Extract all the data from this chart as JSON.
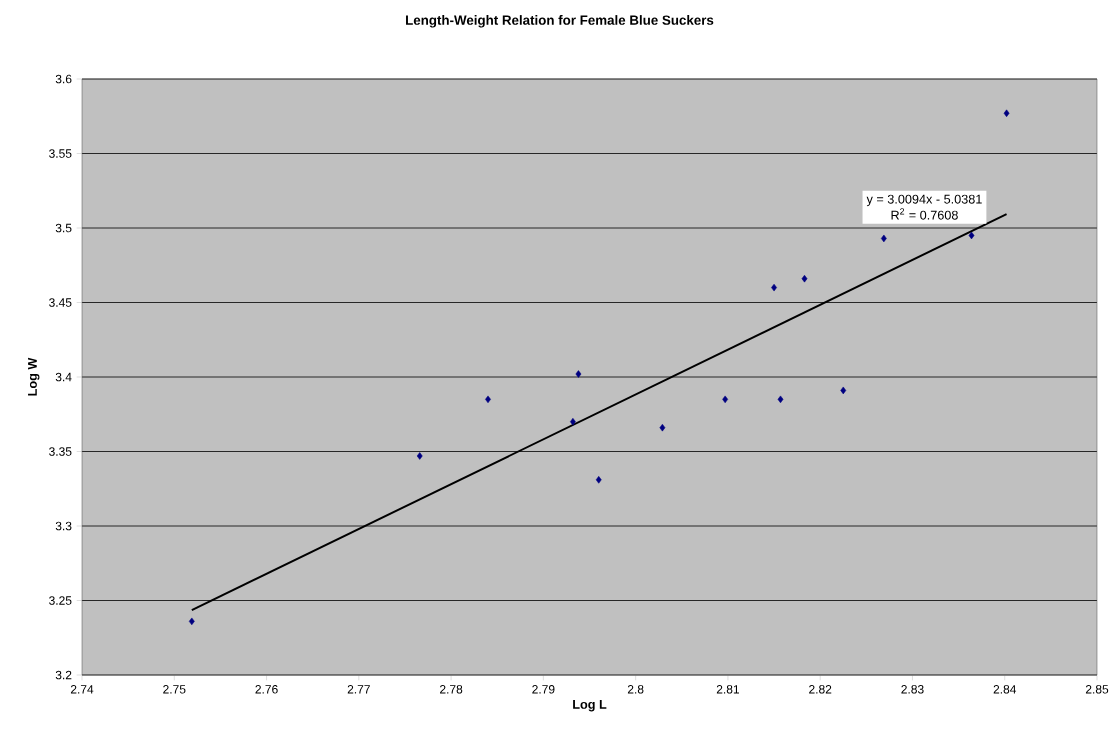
{
  "chart_data": {
    "type": "scatter",
    "title": "Length-Weight Relation for Female Blue Suckers",
    "xlabel": "Log L",
    "ylabel": "Log W",
    "annotations": [
      "y = 3.0094x - 5.0381",
      "R$^{2}$ = 0.7608"
    ],
    "series": [
      {
        "color": "#000080",
        "marker": "diamond",
        "x": [
          2.7519,
          2.7766,
          2.784,
          2.7932,
          2.7938,
          2.796,
          2.8029,
          2.8097,
          2.815,
          2.8157,
          2.8183,
          2.8225,
          2.8269,
          2.8364,
          2.8402
        ],
        "values": [
          3.236,
          3.347,
          3.385,
          3.37,
          3.402,
          3.331,
          3.366,
          3.385,
          3.46,
          3.385,
          3.466,
          3.391,
          3.493,
          3.495,
          3.577
        ]
      },
      {
        "type": "line",
        "color": "#000000",
        "marker": "none",
        "x": [
          2.7519,
          2.8402
        ],
        "values": [
          3.2435,
          3.5093
        ]
      }
    ],
    "xlim": [
      2.74,
      2.85
    ],
    "xticks": [
      2.74,
      2.75,
      2.76,
      2.77,
      2.78,
      2.79,
      2.8,
      2.81,
      2.82,
      2.83,
      2.84,
      2.85
    ],
    "ylim": [
      3.2,
      3.6
    ],
    "yticks": [
      3.2,
      3.25,
      3.3,
      3.35,
      3.4,
      3.45,
      3.5,
      3.55,
      3.6
    ],
    "grid": "y"
  }
}
